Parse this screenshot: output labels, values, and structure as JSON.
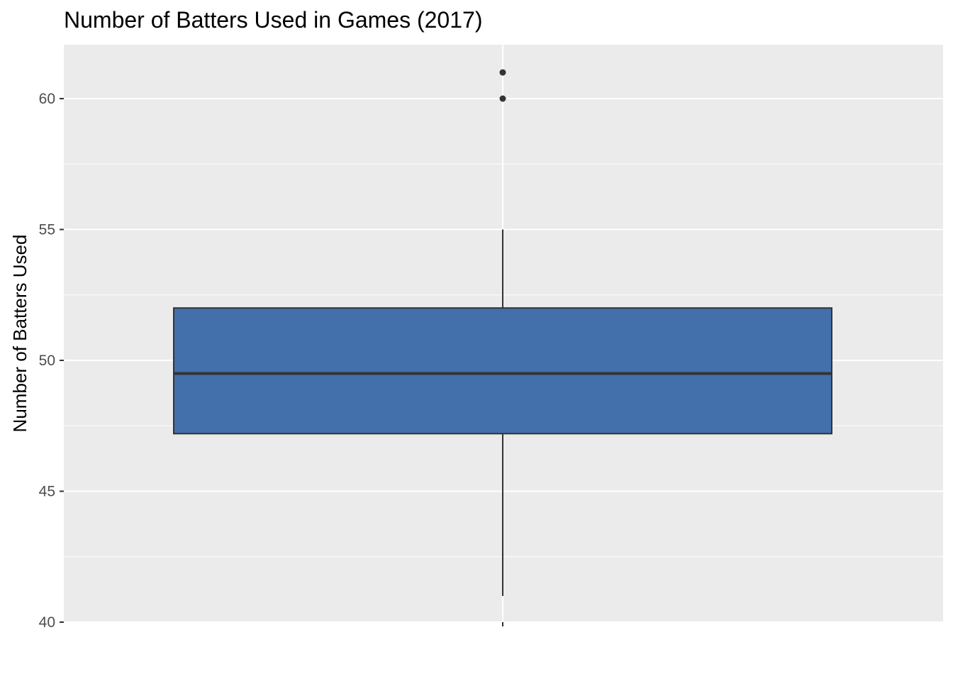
{
  "chart_data": {
    "type": "boxplot",
    "title": "Number of Batters Used in Games (2017)",
    "xlabel": "",
    "ylabel": "Number of Batters Used",
    "ylim": [
      40,
      62
    ],
    "y_ticks": [
      40,
      45,
      50,
      55,
      60
    ],
    "grid": true,
    "box": {
      "min_whisker": 41,
      "q1": 47.2,
      "median": 49.5,
      "q3": 52,
      "max_whisker": 55,
      "outliers": [
        60,
        61
      ]
    },
    "colors": {
      "fill": "#4370AB",
      "line": "#333333",
      "panel": "#EBEBEB",
      "grid": "#FFFFFF"
    }
  }
}
